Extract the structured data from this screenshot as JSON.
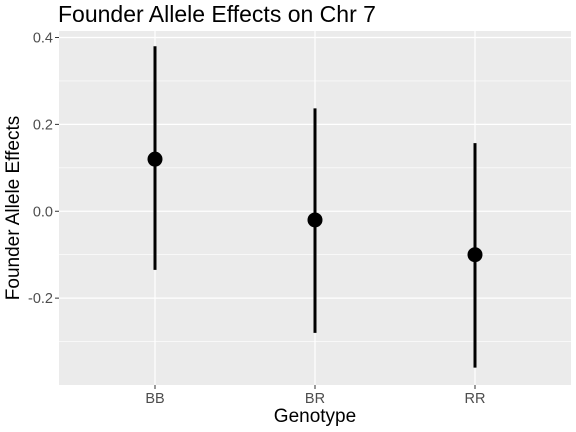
{
  "chart_data": {
    "type": "scatter",
    "title": "Founder Allele Effects on Chr 7",
    "xlabel": "Genotype",
    "ylabel": "Founder Allele Effects",
    "categories": [
      "BB",
      "BR",
      "RR"
    ],
    "points": [
      {
        "category": "BB",
        "value": 0.12,
        "lower": -0.135,
        "upper": 0.38
      },
      {
        "category": "BR",
        "value": -0.02,
        "lower": -0.28,
        "upper": 0.237
      },
      {
        "category": "RR",
        "value": -0.1,
        "lower": -0.36,
        "upper": 0.157
      }
    ],
    "yticks": [
      0.4,
      0.2,
      0.0,
      -0.2
    ],
    "ytick_labels": [
      "0.4",
      "0.2",
      "0.0",
      "-0.2"
    ],
    "ylim": [
      -0.4,
      0.415
    ],
    "grid": true,
    "colors": {
      "panel_background": "#ebebeb",
      "grid": "#ffffff",
      "marks": "#000000"
    }
  }
}
